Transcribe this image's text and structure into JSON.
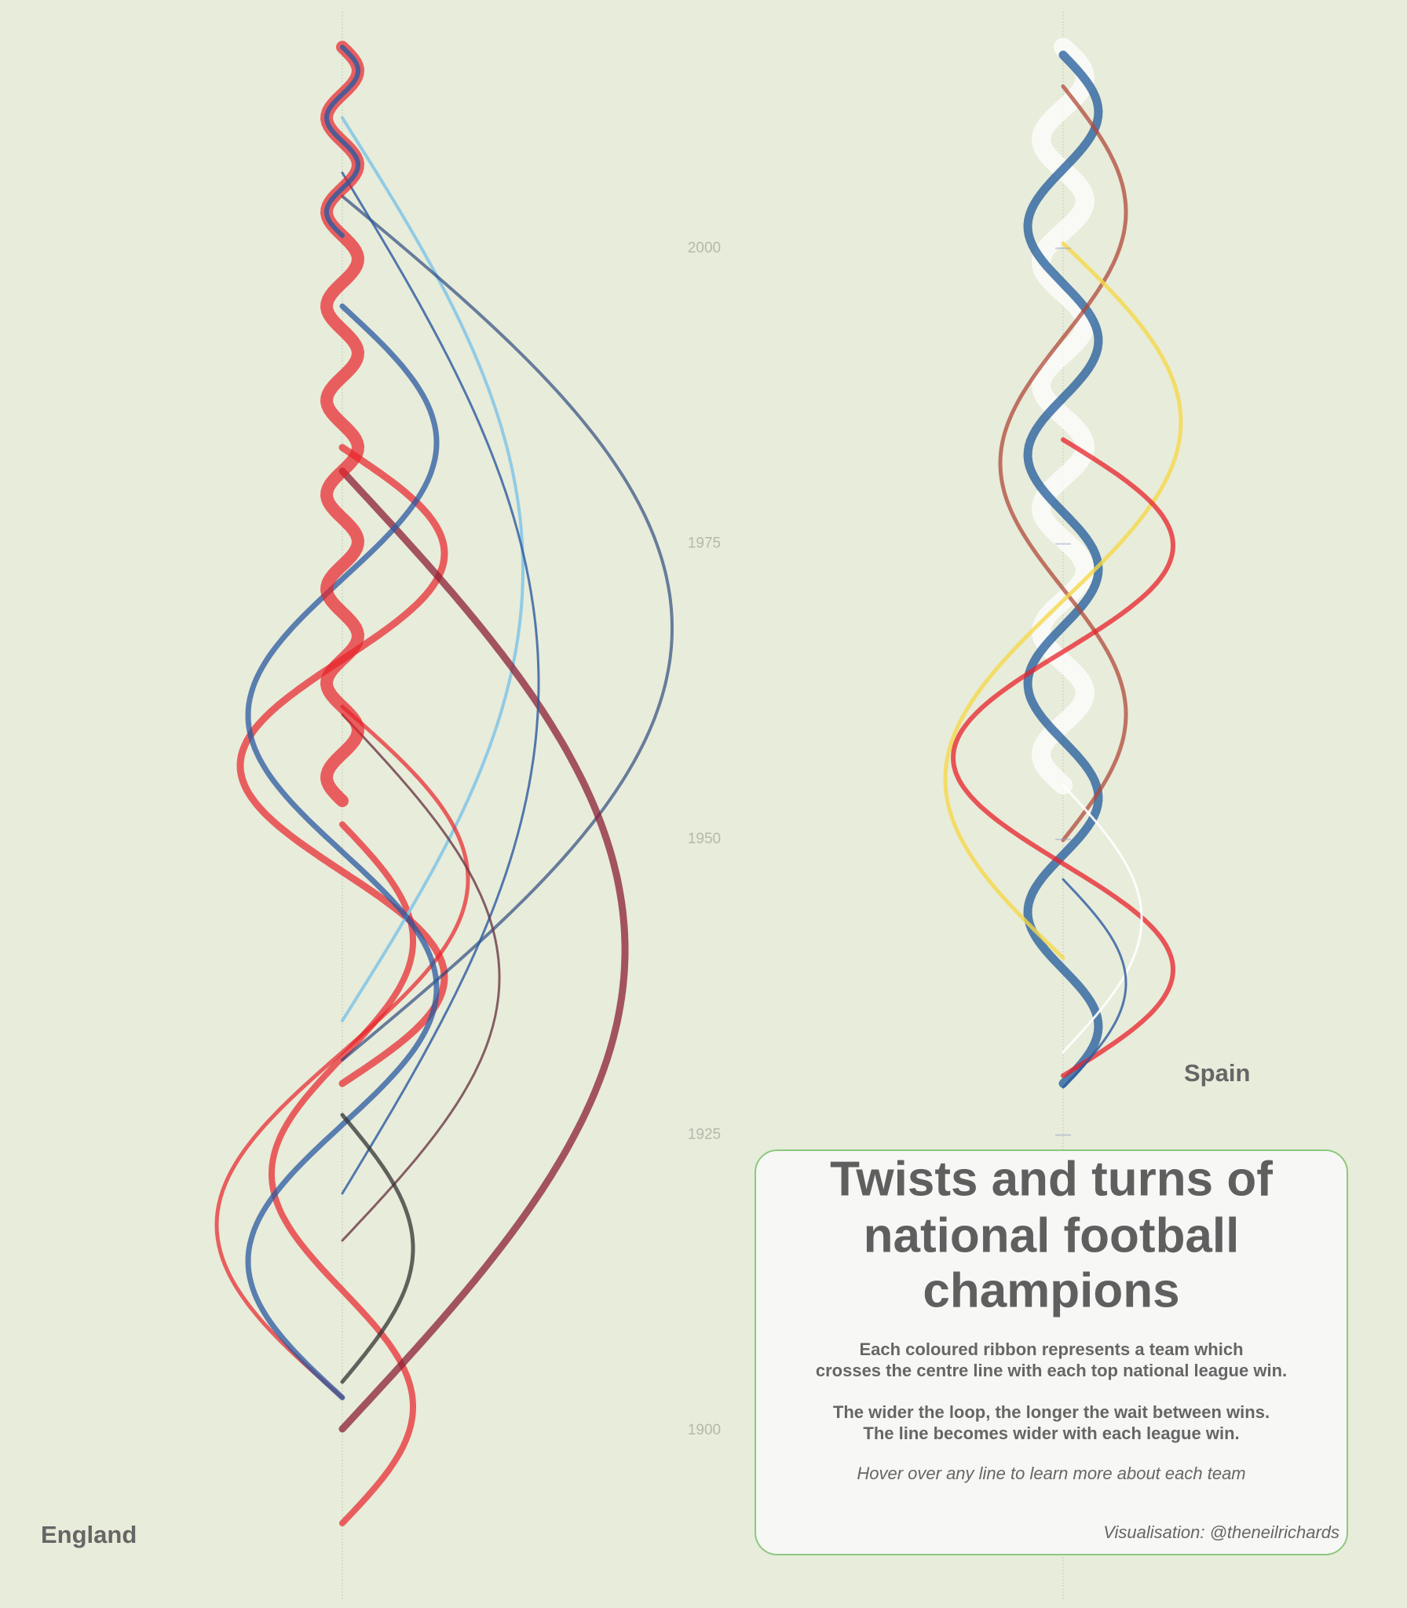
{
  "chart_data": {
    "type": "ribbon",
    "title_lines": [
      "Twists and turns of",
      "national football",
      "champions"
    ],
    "subtitle_lines": [
      "Each coloured ribbon represents a team which",
      "crosses the centre line with each top national league win.",
      "The wider the loop, the longer the wait between wins.",
      "The line becomes wider with each league win."
    ],
    "hover_note": "Hover over any line to learn more about each team",
    "credit": "Visualisation: @theneilrichards",
    "panels": [
      "England",
      "Spain"
    ],
    "ylim": [
      1885,
      2021
    ],
    "yticks": [
      2000,
      1975,
      1950,
      1925,
      1900
    ]
  }
}
